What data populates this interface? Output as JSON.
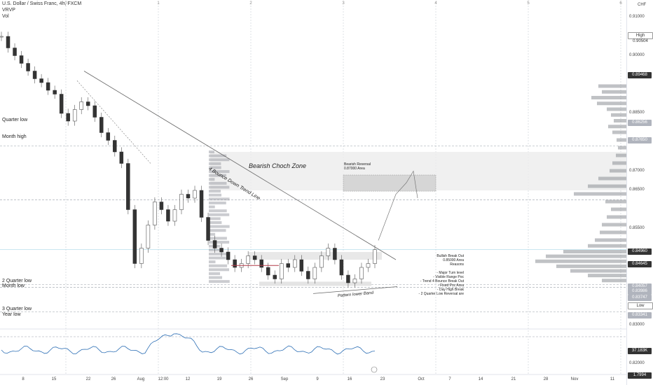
{
  "header": {
    "symbol": "U.S. Dollar / Swiss Franc, 4h, FXCM",
    "ind1": "VRVP",
    "ind2": "Vol"
  },
  "currency": "CHF",
  "levels": [
    {
      "label": "Quarter low",
      "price": 0.86256
    },
    {
      "label": "Month high",
      "price": 0.8765
    },
    {
      "label": "2 Quarter low",
      "price": 0.84057
    },
    {
      "label": "Month low",
      "price": 0.83986
    },
    {
      "label": "3 Quarter low",
      "price": 0.83341
    },
    {
      "label": "Year low",
      "price": 0.827
    }
  ],
  "annotations": {
    "trendline": "4 Bounce Down Trend Line",
    "zone": "Bearish  Choch Zone",
    "reversal_title": "Bearish Reversal",
    "reversal_area": "0.87000 Area",
    "band": "Pattern lower Band",
    "reasons": [
      "Bullish Break Out",
      "0.85000 Area",
      "Reasons",
      "",
      "- Major Turn level",
      "- Visible Range Poc",
      "- Trend 4 Bounce Break Out",
      "- Fixed Poc Area",
      "- Day High Break",
      "- 2 Quarter Low Reversal are"
    ]
  },
  "price_tags": [
    {
      "label": "High",
      "value": "0.90504",
      "style": "white"
    },
    {
      "label": "",
      "value": "0.89468",
      "style": "dark"
    },
    {
      "label": "",
      "value": "0.86256",
      "style": "light"
    },
    {
      "label": "",
      "value": "0.87650",
      "style": "light"
    },
    {
      "label": "",
      "value": "0.84960",
      "style": "dark"
    },
    {
      "label": "",
      "value": "0.84645",
      "style": "dark"
    },
    {
      "label": "",
      "value": "0.84057",
      "style": "light"
    },
    {
      "label": "",
      "value": "0.83986",
      "style": "light"
    },
    {
      "label": "",
      "value": "0.83747",
      "style": "light"
    },
    {
      "label": "Low",
      "value": "",
      "style": "white"
    },
    {
      "label": "",
      "value": "0.83341",
      "style": "light"
    },
    {
      "label": "",
      "value": "37.183K",
      "style": "dark"
    },
    {
      "label": "",
      "value": "1.7994",
      "style": "dark"
    }
  ],
  "vol_value": "37.183K",
  "countdown": "01:41:40",
  "chart_data": {
    "type": "line",
    "title": "U.S. Dollar / Swiss Franc, 4h, FXCM",
    "ylim": [
      0.829,
      0.913
    ],
    "y_ticks": [
      0.91,
      0.9,
      0.885,
      0.87,
      0.865,
      0.855,
      0.84,
      0.83,
      0.82
    ],
    "x_ticks": [
      "8",
      "15",
      "22",
      "26",
      "Aug",
      "12:00",
      "12",
      "19",
      "26",
      "Sep",
      "9",
      "16",
      "23",
      "Oct",
      "7",
      "14",
      "21",
      "28",
      "Nov",
      "11"
    ],
    "range_markers": [
      "0",
      "1",
      "2",
      "3",
      "4",
      "5",
      "6"
    ],
    "series": [
      {
        "values": [
          0.905,
          0.902,
          0.9,
          0.898,
          0.896,
          0.894,
          0.893,
          0.891,
          0.89,
          0.885,
          0.883,
          0.886,
          0.888,
          0.887,
          0.884,
          0.88,
          0.878,
          0.875,
          0.872,
          0.86,
          0.846,
          0.85,
          0.856,
          0.862,
          0.86,
          0.857,
          0.86,
          0.864,
          0.863,
          0.865,
          0.858,
          0.852,
          0.85,
          0.849,
          0.847,
          0.845,
          0.846,
          0.848,
          0.847,
          0.845,
          0.843,
          0.842,
          0.846,
          0.845,
          0.847,
          0.844,
          0.842,
          0.845,
          0.848,
          0.85,
          0.847,
          0.843,
          0.841,
          0.842,
          0.845,
          0.846,
          0.8496
        ]
      }
    ]
  }
}
